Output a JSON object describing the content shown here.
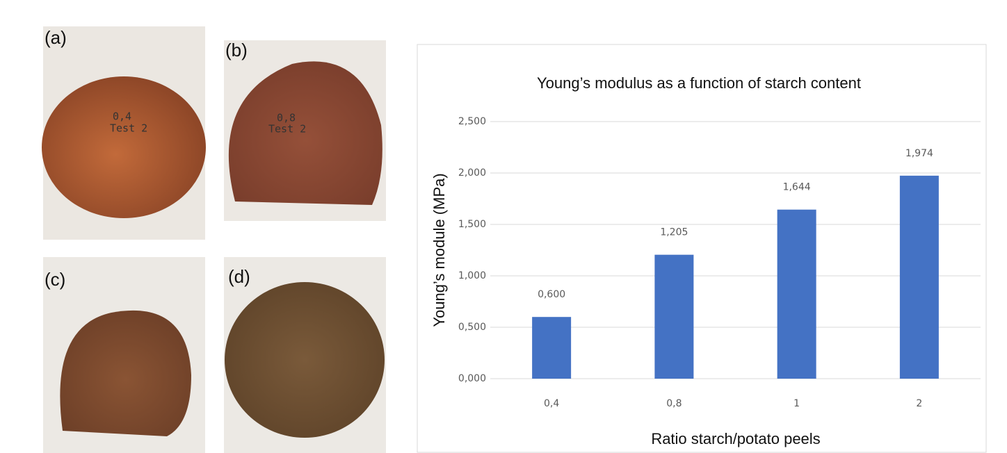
{
  "panels": [
    {
      "label": "(a)",
      "note": [
        "0,4",
        "Test 2"
      ]
    },
    {
      "label": "(b)",
      "note": [
        "0,8",
        "Test 2"
      ]
    },
    {
      "label": "(c)"
    },
    {
      "label": "(d)"
    }
  ],
  "chart_data": {
    "type": "bar",
    "title": "Young’s modulus as a function of starch content",
    "x_label": "Ratio starch/potato peels",
    "y_label": "Young’s module (MPa)",
    "categories": [
      "0,4",
      "0,8",
      "1",
      "2"
    ],
    "values": [
      0.6,
      1.205,
      1.644,
      1.974
    ],
    "value_labels": [
      "0,600",
      "1,205",
      "1,644",
      "1,974"
    ],
    "color": "#4472c4",
    "ylim": [
      0,
      2.5
    ],
    "yticks": [
      {
        "value": 0,
        "label": "0,000"
      },
      {
        "value": 0.5,
        "label": "0,500"
      },
      {
        "value": 1,
        "label": "1,000"
      },
      {
        "value": 1.5,
        "label": "1,500"
      },
      {
        "value": 2,
        "label": "2,000"
      },
      {
        "value": 2.5,
        "label": "2,500"
      }
    ],
    "grid": true
  }
}
